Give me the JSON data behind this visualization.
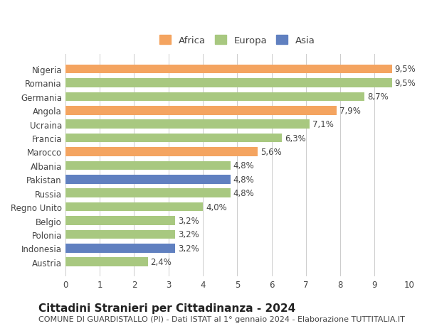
{
  "countries": [
    "Nigeria",
    "Romania",
    "Germania",
    "Angola",
    "Ucraina",
    "Francia",
    "Marocco",
    "Albania",
    "Pakistan",
    "Russia",
    "Regno Unito",
    "Belgio",
    "Polonia",
    "Indonesia",
    "Austria"
  ],
  "values": [
    9.5,
    9.5,
    8.7,
    7.9,
    7.1,
    6.3,
    5.6,
    4.8,
    4.8,
    4.8,
    4.0,
    3.2,
    3.2,
    3.2,
    2.4
  ],
  "labels": [
    "9,5%",
    "9,5%",
    "8,7%",
    "7,9%",
    "7,1%",
    "6,3%",
    "5,6%",
    "4,8%",
    "4,8%",
    "4,8%",
    "4,0%",
    "3,2%",
    "3,2%",
    "3,2%",
    "2,4%"
  ],
  "continents": [
    "Africa",
    "Europa",
    "Europa",
    "Africa",
    "Europa",
    "Europa",
    "Africa",
    "Europa",
    "Asia",
    "Europa",
    "Europa",
    "Europa",
    "Europa",
    "Asia",
    "Europa"
  ],
  "colors": {
    "Africa": "#F4A460",
    "Europa": "#A8C880",
    "Asia": "#6080C0"
  },
  "legend_colors": {
    "Africa": "#F4A460",
    "Europa": "#A8C880",
    "Asia": "#6080C0"
  },
  "title": "Cittadini Stranieri per Cittadinanza - 2024",
  "subtitle": "COMUNE DI GUARDISTALLO (PI) - Dati ISTAT al 1° gennaio 2024 - Elaborazione TUTTITALIA.IT",
  "xlim": [
    0,
    10
  ],
  "xticks": [
    0,
    1,
    2,
    3,
    4,
    5,
    6,
    7,
    8,
    9,
    10
  ],
  "background_color": "#ffffff",
  "bar_height": 0.65,
  "label_fontsize": 8.5,
  "tick_fontsize": 8.5,
  "title_fontsize": 11,
  "subtitle_fontsize": 8,
  "legend_fontsize": 9.5
}
